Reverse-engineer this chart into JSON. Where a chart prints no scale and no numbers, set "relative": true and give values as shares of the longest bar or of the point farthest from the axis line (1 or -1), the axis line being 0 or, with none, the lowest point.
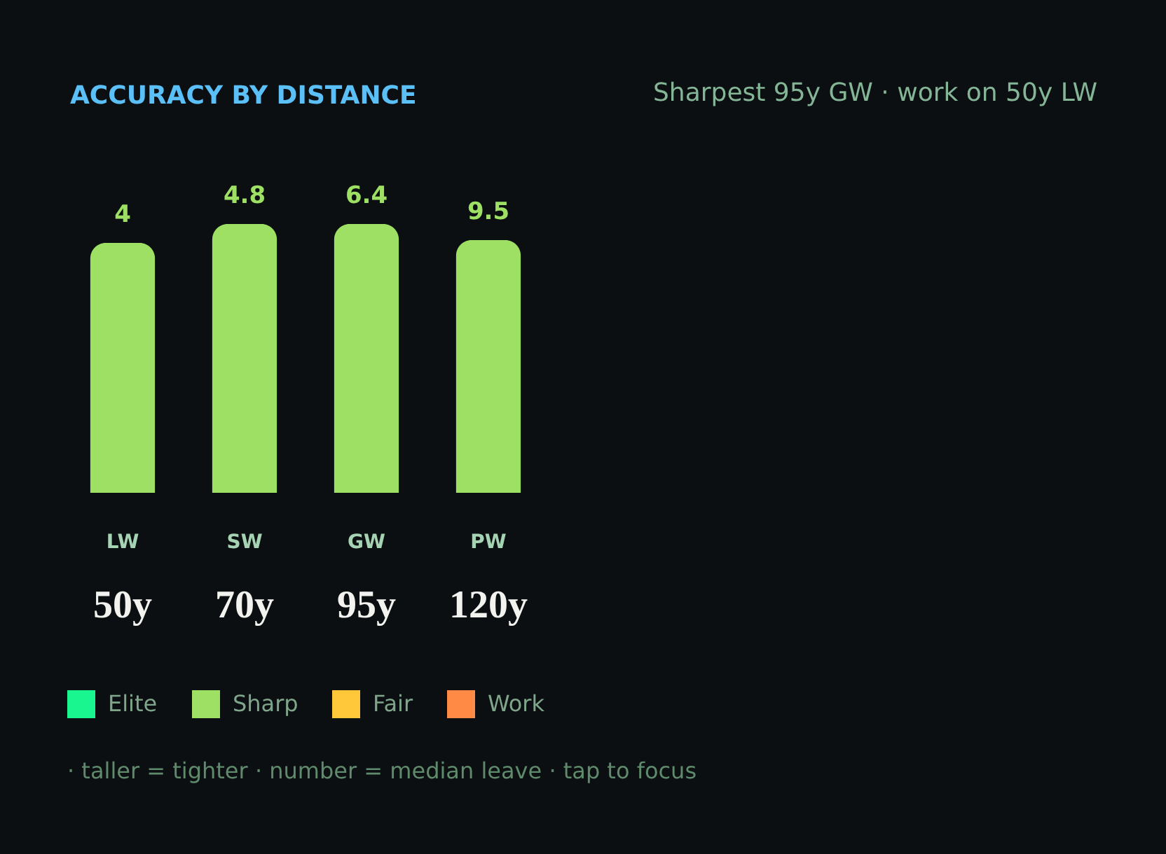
{
  "chart_data": {
    "type": "bar",
    "title": "ACCURACY BY DISTANCE",
    "subtitle": "Sharpest 95y GW · work on 50y LW",
    "categories": [
      "LW",
      "SW",
      "GW",
      "PW"
    ],
    "relative": true,
    "series": [
      {
        "name": "Elite",
        "color": "#19f58f",
        "values": [
          null,
          null,
          null,
          null
        ]
      },
      {
        "name": "Sharp",
        "color": "#9ee063",
        "values": [
          0.93,
          1,
          1,
          0.94
        ]
      },
      {
        "name": "Fair",
        "color": "#ffc83a",
        "values": [
          null,
          null,
          null,
          null
        ]
      },
      {
        "name": "Work",
        "color": "#ff8a45",
        "values": [
          null,
          null,
          null,
          null
        ]
      }
    ],
    "annotations": [
      {
        "text": "4",
        "x": "LW",
        "y": 0.93
      },
      {
        "text": "4.8",
        "x": "SW",
        "y": 1
      },
      {
        "text": "6.4",
        "x": "GW",
        "y": 1
      },
      {
        "text": "9.5",
        "x": "PW",
        "y": 0.94
      },
      "50y",
      "70y",
      "95y",
      "120y",
      "· taller = tighter · number = median leave · tap to focus"
    ],
    "legend": "bottom",
    "grid": false
  }
}
